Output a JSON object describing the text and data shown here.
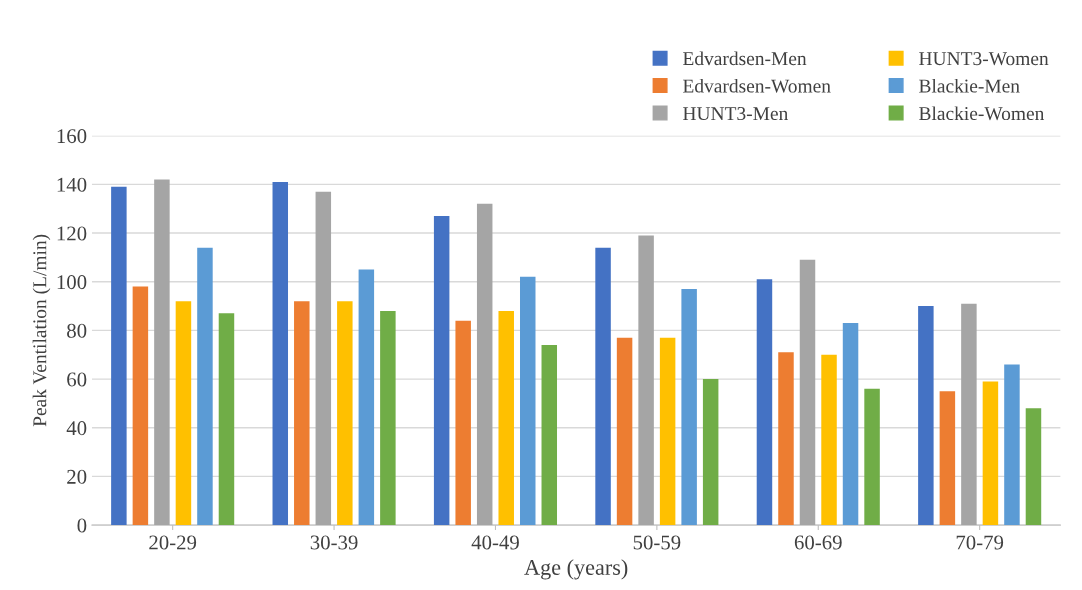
{
  "chart_data": {
    "type": "bar",
    "xlabel": "Age (years)",
    "ylabel": "Peak Ventilation (L/min)",
    "categories": [
      "20-29",
      "30-39",
      "40-49",
      "50-59",
      "60-69",
      "70-79"
    ],
    "series": [
      {
        "name": "Edvardsen-Men",
        "color": "#4472c4",
        "values": [
          139,
          141,
          127,
          114,
          101,
          90
        ]
      },
      {
        "name": "Edvardsen-Women",
        "color": "#ed7d31",
        "values": [
          98,
          92,
          84,
          77,
          71,
          55
        ]
      },
      {
        "name": "HUNT3-Men",
        "color": "#a5a5a5",
        "values": [
          142,
          137,
          132,
          119,
          109,
          91
        ]
      },
      {
        "name": "HUNT3-Women",
        "color": "#ffc000",
        "values": [
          92,
          92,
          88,
          77,
          70,
          59
        ]
      },
      {
        "name": "Blackie-Men",
        "color": "#5b9bd5",
        "values": [
          114,
          105,
          102,
          97,
          83,
          66
        ]
      },
      {
        "name": "Blackie-Women",
        "color": "#70ad47",
        "values": [
          87,
          88,
          74,
          60,
          56,
          48
        ]
      }
    ],
    "ylim": [
      0,
      160
    ],
    "yticks": [
      0,
      20,
      40,
      60,
      80,
      100,
      120,
      140,
      160
    ],
    "grid": "y",
    "legend": "top right"
  }
}
